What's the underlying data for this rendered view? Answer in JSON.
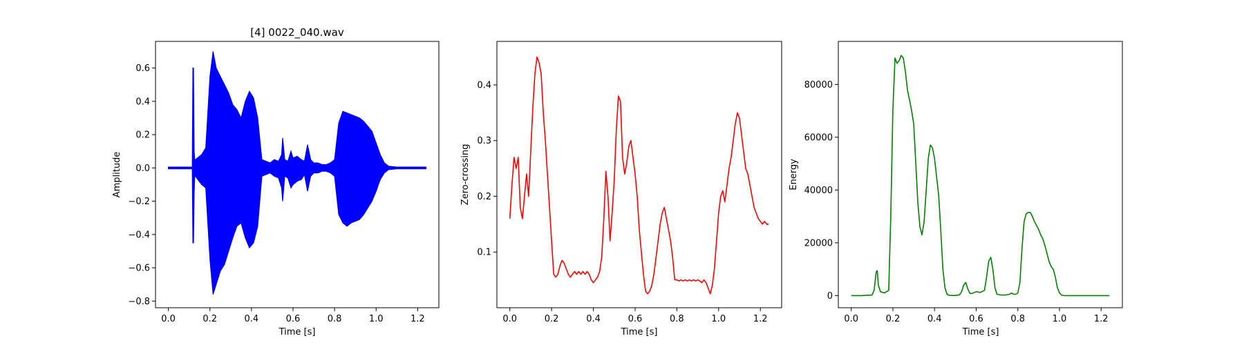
{
  "chart_data": [
    {
      "type": "line",
      "title": "[4] 0022_040.wav",
      "xlabel": "Time [s]",
      "ylabel": "Amplitude",
      "xlim": [
        -0.062,
        1.302
      ],
      "ylim": [
        -0.84,
        0.76
      ],
      "xticks": [
        0.0,
        0.2,
        0.4,
        0.6,
        0.8,
        1.0,
        1.2
      ],
      "yticks": [
        -0.8,
        -0.6,
        -0.4,
        -0.2,
        0.0,
        0.2,
        0.4,
        0.6
      ],
      "xtick_labels": [
        "0.0",
        "0.2",
        "0.4",
        "0.6",
        "0.8",
        "1.0",
        "1.2"
      ],
      "ytick_labels": [
        "−0.8",
        "−0.6",
        "−0.4",
        "−0.2",
        "0.0",
        "0.2",
        "0.4",
        "0.6"
      ],
      "grid": false,
      "color": "#0000ff",
      "series": [
        {
          "x": [
            0.0,
            0.115,
            0.118,
            0.121,
            0.124,
            0.127,
            0.13,
            0.16,
            0.18,
            0.2,
            0.215,
            0.23,
            0.25,
            0.27,
            0.29,
            0.31,
            0.33,
            0.35,
            0.37,
            0.39,
            0.41,
            0.43,
            0.45,
            0.47,
            0.49,
            0.51,
            0.53,
            0.545,
            0.55,
            0.56,
            0.575,
            0.59,
            0.6,
            0.62,
            0.64,
            0.655,
            0.67,
            0.685,
            0.7,
            0.72,
            0.74,
            0.76,
            0.78,
            0.8,
            0.82,
            0.84,
            0.86,
            0.88,
            0.9,
            0.92,
            0.94,
            0.96,
            0.98,
            1.0,
            1.02,
            1.04,
            1.06,
            1.1,
            1.15,
            1.2,
            1.24
          ],
          "upper": [
            0.005,
            0.005,
            0.6,
            0.6,
            0.1,
            0.05,
            0.05,
            0.08,
            0.12,
            0.55,
            0.7,
            0.6,
            0.55,
            0.5,
            0.45,
            0.38,
            0.35,
            0.3,
            0.4,
            0.46,
            0.42,
            0.3,
            0.05,
            0.04,
            0.03,
            0.05,
            0.04,
            0.08,
            0.18,
            0.05,
            0.04,
            0.1,
            0.06,
            0.07,
            0.05,
            0.04,
            0.14,
            0.05,
            0.03,
            0.03,
            0.02,
            0.02,
            0.03,
            0.05,
            0.27,
            0.34,
            0.33,
            0.32,
            0.31,
            0.3,
            0.28,
            0.25,
            0.22,
            0.15,
            0.08,
            0.03,
            0.01,
            0.005,
            0.005,
            0.005,
            0.005
          ],
          "lower": [
            -0.005,
            -0.005,
            -0.45,
            -0.45,
            -0.15,
            -0.05,
            -0.05,
            -0.1,
            -0.12,
            -0.55,
            -0.76,
            -0.7,
            -0.62,
            -0.58,
            -0.5,
            -0.42,
            -0.35,
            -0.33,
            -0.42,
            -0.48,
            -0.45,
            -0.35,
            -0.05,
            -0.04,
            -0.03,
            -0.05,
            -0.06,
            -0.12,
            -0.2,
            -0.05,
            -0.06,
            -0.12,
            -0.1,
            -0.08,
            -0.07,
            -0.04,
            -0.14,
            -0.05,
            -0.03,
            -0.03,
            -0.02,
            -0.02,
            -0.03,
            -0.05,
            -0.28,
            -0.33,
            -0.35,
            -0.33,
            -0.32,
            -0.31,
            -0.28,
            -0.24,
            -0.2,
            -0.14,
            -0.07,
            -0.03,
            -0.01,
            -0.005,
            -0.005,
            -0.005,
            -0.005
          ]
        }
      ]
    },
    {
      "type": "line",
      "title": "",
      "xlabel": "Time [s]",
      "ylabel": "Zero-crossing",
      "xlim": [
        -0.062,
        1.302
      ],
      "ylim": [
        0.0,
        0.478
      ],
      "xticks": [
        0.0,
        0.2,
        0.4,
        0.6,
        0.8,
        1.0,
        1.2
      ],
      "yticks": [
        0.1,
        0.2,
        0.3,
        0.4
      ],
      "xtick_labels": [
        "0.0",
        "0.2",
        "0.4",
        "0.6",
        "0.8",
        "1.0",
        "1.2"
      ],
      "ytick_labels": [
        "0.1",
        "0.2",
        "0.3",
        "0.4"
      ],
      "grid": false,
      "color": "#ff0000",
      "series": [
        {
          "x": [
            0.0,
            0.01,
            0.02,
            0.03,
            0.04,
            0.05,
            0.06,
            0.07,
            0.08,
            0.09,
            0.1,
            0.11,
            0.12,
            0.13,
            0.14,
            0.15,
            0.16,
            0.17,
            0.18,
            0.19,
            0.2,
            0.21,
            0.22,
            0.23,
            0.24,
            0.25,
            0.26,
            0.27,
            0.28,
            0.29,
            0.3,
            0.31,
            0.32,
            0.33,
            0.34,
            0.35,
            0.36,
            0.37,
            0.38,
            0.39,
            0.4,
            0.41,
            0.42,
            0.43,
            0.44,
            0.45,
            0.46,
            0.47,
            0.48,
            0.49,
            0.5,
            0.51,
            0.52,
            0.53,
            0.54,
            0.55,
            0.56,
            0.57,
            0.58,
            0.59,
            0.6,
            0.61,
            0.62,
            0.63,
            0.64,
            0.65,
            0.66,
            0.67,
            0.68,
            0.69,
            0.7,
            0.71,
            0.72,
            0.73,
            0.74,
            0.75,
            0.76,
            0.77,
            0.78,
            0.79,
            0.8,
            0.81,
            0.82,
            0.83,
            0.84,
            0.85,
            0.86,
            0.87,
            0.88,
            0.89,
            0.9,
            0.91,
            0.92,
            0.93,
            0.94,
            0.95,
            0.96,
            0.97,
            0.98,
            0.99,
            1.0,
            1.01,
            1.02,
            1.03,
            1.04,
            1.05,
            1.06,
            1.07,
            1.08,
            1.09,
            1.1,
            1.11,
            1.12,
            1.13,
            1.14,
            1.15,
            1.16,
            1.17,
            1.18,
            1.19,
            1.2,
            1.21,
            1.22,
            1.23,
            1.24
          ],
          "y": [
            0.16,
            0.22,
            0.27,
            0.25,
            0.27,
            0.18,
            0.16,
            0.2,
            0.24,
            0.2,
            0.28,
            0.36,
            0.42,
            0.45,
            0.44,
            0.42,
            0.35,
            0.3,
            0.24,
            0.18,
            0.12,
            0.06,
            0.055,
            0.06,
            0.075,
            0.085,
            0.08,
            0.07,
            0.06,
            0.055,
            0.06,
            0.065,
            0.06,
            0.065,
            0.06,
            0.065,
            0.06,
            0.065,
            0.06,
            0.05,
            0.045,
            0.05,
            0.055,
            0.065,
            0.09,
            0.16,
            0.245,
            0.2,
            0.12,
            0.17,
            0.23,
            0.32,
            0.38,
            0.37,
            0.27,
            0.24,
            0.26,
            0.29,
            0.3,
            0.27,
            0.24,
            0.2,
            0.14,
            0.1,
            0.06,
            0.03,
            0.025,
            0.03,
            0.04,
            0.06,
            0.09,
            0.12,
            0.15,
            0.17,
            0.18,
            0.16,
            0.14,
            0.12,
            0.09,
            0.05,
            0.05,
            0.048,
            0.05,
            0.048,
            0.05,
            0.048,
            0.05,
            0.048,
            0.05,
            0.048,
            0.05,
            0.048,
            0.045,
            0.05,
            0.045,
            0.035,
            0.025,
            0.04,
            0.07,
            0.12,
            0.17,
            0.2,
            0.21,
            0.19,
            0.22,
            0.25,
            0.27,
            0.3,
            0.33,
            0.35,
            0.34,
            0.31,
            0.28,
            0.25,
            0.24,
            0.22,
            0.2,
            0.18,
            0.17,
            0.16,
            0.155,
            0.15,
            0.155,
            0.15,
            0.15
          ]
        }
      ]
    },
    {
      "type": "line",
      "title": "",
      "xlabel": "Time [s]",
      "ylabel": "Energy",
      "xlim": [
        -0.062,
        1.302
      ],
      "ylim": [
        -4600,
        96300
      ],
      "xticks": [
        0.0,
        0.2,
        0.4,
        0.6,
        0.8,
        1.0,
        1.2
      ],
      "yticks": [
        0,
        20000,
        40000,
        60000,
        80000
      ],
      "xtick_labels": [
        "0.0",
        "0.2",
        "0.4",
        "0.6",
        "0.8",
        "1.0",
        "1.2"
      ],
      "ytick_labels": [
        "0",
        "20000",
        "40000",
        "60000",
        "80000"
      ],
      "grid": false,
      "color": "#008000",
      "series": [
        {
          "x": [
            0.0,
            0.05,
            0.1,
            0.11,
            0.12,
            0.125,
            0.13,
            0.14,
            0.16,
            0.18,
            0.19,
            0.2,
            0.21,
            0.22,
            0.23,
            0.24,
            0.25,
            0.26,
            0.27,
            0.28,
            0.29,
            0.3,
            0.31,
            0.32,
            0.33,
            0.34,
            0.35,
            0.36,
            0.37,
            0.38,
            0.39,
            0.4,
            0.41,
            0.42,
            0.43,
            0.44,
            0.45,
            0.46,
            0.47,
            0.48,
            0.5,
            0.52,
            0.53,
            0.54,
            0.55,
            0.56,
            0.57,
            0.58,
            0.6,
            0.62,
            0.64,
            0.65,
            0.66,
            0.67,
            0.68,
            0.69,
            0.7,
            0.72,
            0.74,
            0.76,
            0.77,
            0.78,
            0.79,
            0.8,
            0.81,
            0.82,
            0.83,
            0.84,
            0.85,
            0.86,
            0.87,
            0.88,
            0.89,
            0.9,
            0.91,
            0.92,
            0.93,
            0.94,
            0.95,
            0.96,
            0.97,
            0.98,
            0.99,
            1.0,
            1.01,
            1.02,
            1.03,
            1.05,
            1.1,
            1.2,
            1.24
          ],
          "y": [
            0,
            0,
            200,
            2000,
            9000,
            9500,
            4000,
            1500,
            1000,
            2000,
            30000,
            70000,
            90000,
            88000,
            89000,
            91000,
            90000,
            85000,
            78000,
            74000,
            70000,
            65000,
            50000,
            35000,
            26000,
            23000,
            28000,
            40000,
            52000,
            57000,
            56000,
            52000,
            45000,
            38000,
            25000,
            10000,
            3000,
            500,
            100,
            50,
            50,
            300,
            1500,
            4000,
            5000,
            2500,
            800,
            800,
            1500,
            1200,
            2000,
            7000,
            13000,
            14500,
            10000,
            3000,
            500,
            200,
            200,
            500,
            1000,
            500,
            500,
            1000,
            5000,
            18000,
            28000,
            31000,
            31500,
            31500,
            30000,
            28000,
            26500,
            25000,
            23000,
            21500,
            19000,
            16000,
            13000,
            11000,
            10000,
            7000,
            3000,
            1000,
            200,
            0,
            0,
            0,
            0,
            0,
            0
          ]
        }
      ]
    }
  ]
}
